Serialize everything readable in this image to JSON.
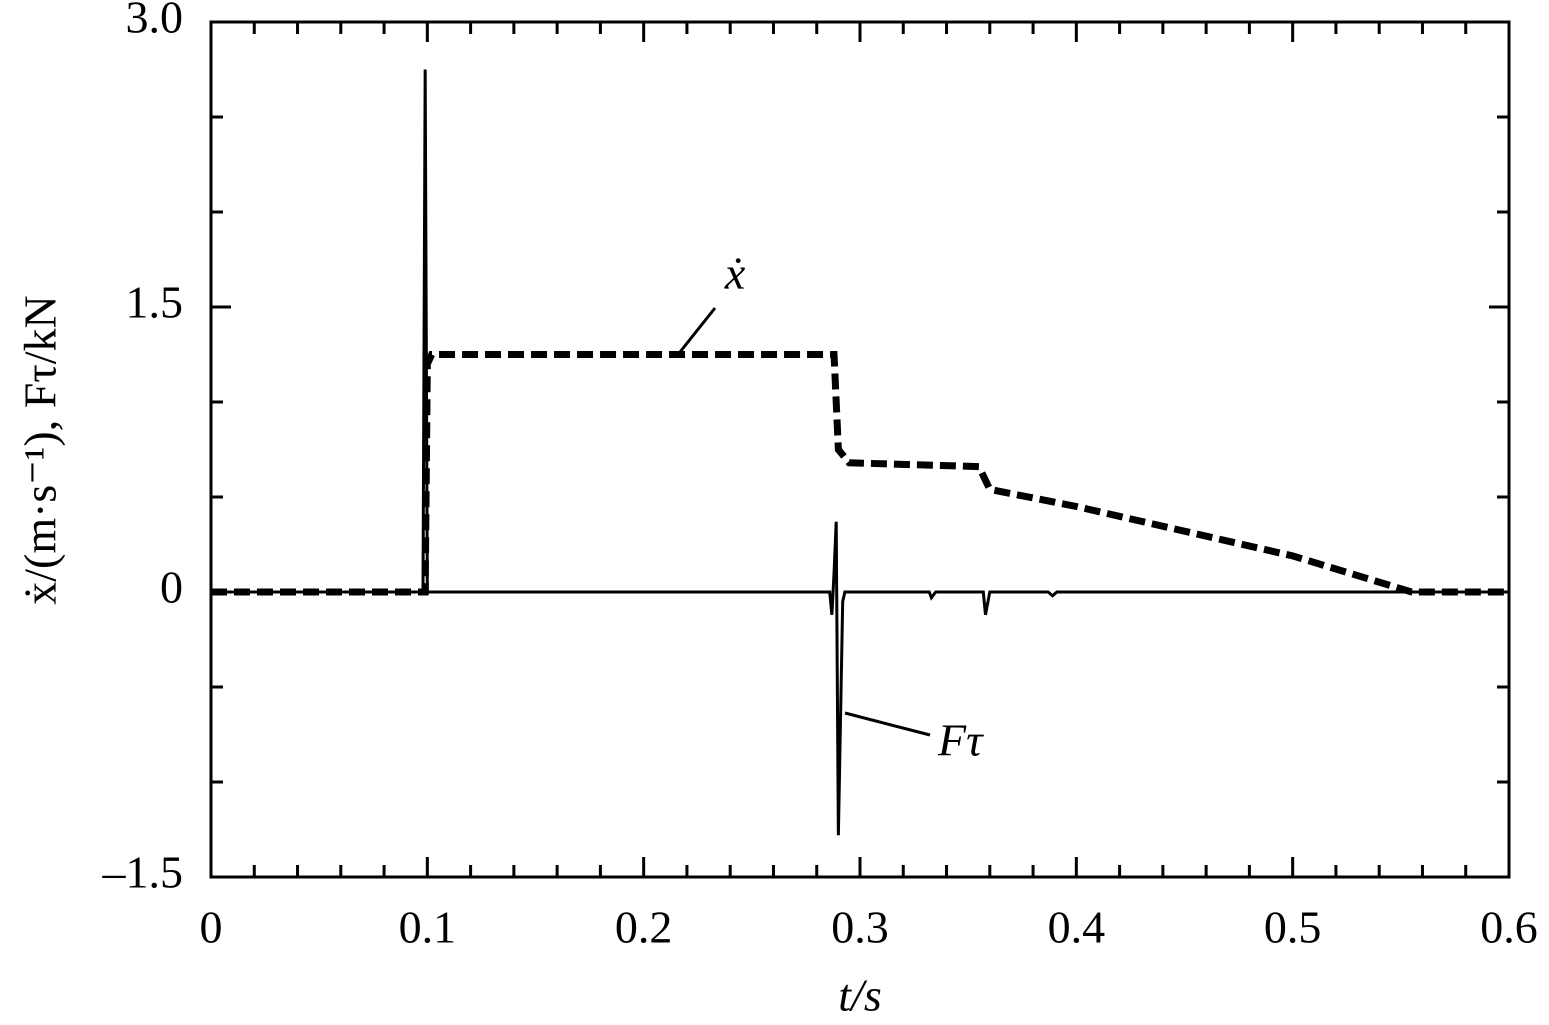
{
  "chart_data": {
    "type": "line",
    "x_label": "t/s",
    "y_label": "ẋ/(m·s⁻¹), Fτ/kN",
    "xlim": [
      0,
      0.6
    ],
    "ylim": [
      -1.5,
      3
    ],
    "xticks": [
      0,
      0.1,
      0.2,
      0.3,
      0.4,
      0.5,
      0.6
    ],
    "yticks": [
      {
        "value": -1.5,
        "label": "–1.5"
      },
      0,
      1.5,
      {
        "value": 3,
        "label": "3.0"
      }
    ],
    "xminorticks": [
      0.02,
      0.04,
      0.06,
      0.08,
      0.12,
      0.14,
      0.16,
      0.18,
      0.22,
      0.24,
      0.26,
      0.28,
      0.32,
      0.34,
      0.36,
      0.38,
      0.42,
      0.44,
      0.46,
      0.48,
      0.52,
      0.54,
      0.56,
      0.58
    ],
    "yminorticks": [
      -1,
      -0.5,
      0.5,
      1,
      2,
      2.5
    ],
    "series": [
      {
        "name": "ẋ",
        "color": "#000",
        "style": "dashed",
        "x": [
          0,
          0.099,
          0.1,
          0.102,
          0.288,
          0.29,
          0.295,
          0.355,
          0.36,
          0.4,
          0.5,
          0.555,
          0.6
        ],
        "values": [
          0,
          0,
          1.2,
          1.25,
          1.25,
          0.75,
          0.68,
          0.66,
          0.54,
          0.45,
          0.19,
          0,
          0
        ]
      },
      {
        "name": "Fτ",
        "color": "#000",
        "style": "solid",
        "x": [
          0,
          0.098,
          0.099,
          0.1,
          0.286,
          0.287,
          0.288,
          0.289,
          0.29,
          0.292,
          0.293,
          0.332,
          0.333,
          0.335,
          0.357,
          0.358,
          0.36,
          0.387,
          0.389,
          0.391,
          0.6
        ],
        "values": [
          0,
          0,
          2.75,
          0,
          0,
          -0.12,
          0.1,
          0.37,
          -1.28,
          -0.05,
          0,
          0,
          -0.03,
          0,
          0,
          -0.12,
          0,
          0,
          -0.02,
          0,
          0
        ]
      }
    ]
  }
}
